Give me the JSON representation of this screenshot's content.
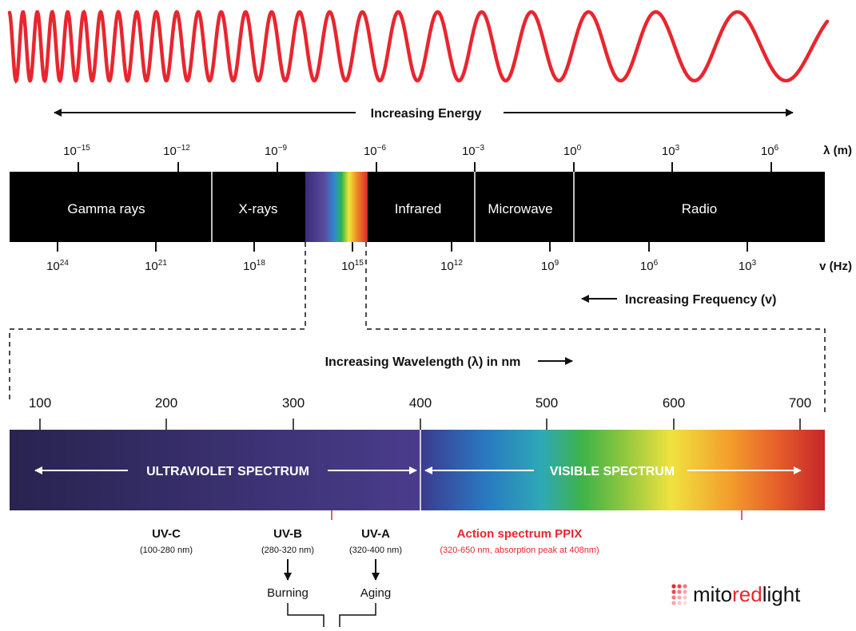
{
  "colors": {
    "wave": "#e8262f",
    "band_background": "#000000",
    "accent_red": "#e8262f",
    "uv_dark": "#28234f",
    "uv_light": "#4a3c8c"
  },
  "energy_label": "Increasing Energy",
  "wavelength_axis": {
    "unit_label": "λ (m)",
    "ticks": [
      {
        "base": "10",
        "exp": "-15"
      },
      {
        "base": "10",
        "exp": "-12"
      },
      {
        "base": "10",
        "exp": "-9"
      },
      {
        "base": "10",
        "exp": "-6"
      },
      {
        "base": "10",
        "exp": "-3"
      },
      {
        "base": "10",
        "exp": "0"
      },
      {
        "base": "10",
        "exp": "3"
      },
      {
        "base": "10",
        "exp": "6"
      }
    ]
  },
  "frequency_axis": {
    "unit_label": "v (Hz)",
    "ticks": [
      {
        "base": "10",
        "exp": "24"
      },
      {
        "base": "10",
        "exp": "21"
      },
      {
        "base": "10",
        "exp": "18"
      },
      {
        "base": "10",
        "exp": "15"
      },
      {
        "base": "10",
        "exp": "12"
      },
      {
        "base": "10",
        "exp": "9"
      },
      {
        "base": "10",
        "exp": "6"
      },
      {
        "base": "10",
        "exp": "3"
      }
    ]
  },
  "bands": [
    "Gamma rays",
    "X-rays",
    "Infrared",
    "Microwave",
    "Radio"
  ],
  "frequency_label": "Increasing Frequency (v)",
  "wavelength_nm_label": "Increasing Wavelength (λ) in nm",
  "nm_ticks": [
    "100",
    "200",
    "300",
    "400",
    "500",
    "600",
    "700"
  ],
  "spectrum_labels": {
    "uv": "ULTRAVIOLET SPECTRUM",
    "visible": "VISIBLE SPECTRUM"
  },
  "uv_bands": [
    {
      "name": "UV-C",
      "range": "(100-280 nm)"
    },
    {
      "name": "UV-B",
      "range": "(280-320 nm)",
      "effect": "Burning"
    },
    {
      "name": "UV-A",
      "range": "(320-400 nm)",
      "effect": "Aging"
    }
  ],
  "action_spectrum": {
    "title": "Action spectrum PPIX",
    "detail": "(320-650 nm, absorption peak at 408nm)"
  },
  "logo": {
    "parts": [
      "mito",
      "red",
      "light"
    ],
    "icon": "dot-grid-logo-icon"
  }
}
